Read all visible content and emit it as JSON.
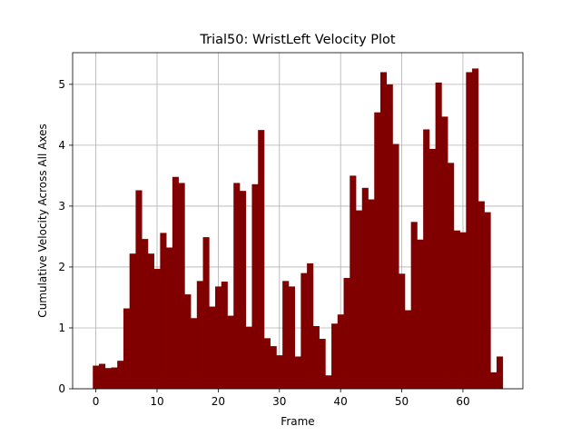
{
  "chart_data": {
    "type": "bar",
    "title": "Trial50: WristLeft Velocity Plot",
    "xlabel": "Frame",
    "ylabel": "Cumulative Velocity Across All Axes",
    "x": [
      0,
      1,
      2,
      3,
      4,
      5,
      6,
      7,
      8,
      9,
      10,
      11,
      12,
      13,
      14,
      15,
      16,
      17,
      18,
      19,
      20,
      21,
      22,
      23,
      24,
      25,
      26,
      27,
      28,
      29,
      30,
      31,
      32,
      33,
      34,
      35,
      36,
      37,
      38,
      39,
      40,
      41,
      42,
      43,
      44,
      45,
      46,
      47,
      48,
      49,
      50,
      51,
      52,
      53,
      54,
      55,
      56,
      57,
      58,
      59,
      60,
      61,
      62,
      63,
      64,
      65,
      66
    ],
    "values": [
      0.38,
      0.41,
      0.34,
      0.35,
      0.46,
      1.32,
      2.22,
      3.26,
      2.46,
      2.22,
      1.97,
      2.56,
      2.32,
      3.48,
      3.38,
      1.55,
      1.16,
      1.77,
      2.49,
      1.35,
      1.68,
      1.76,
      1.2,
      3.38,
      3.25,
      1.02,
      3.36,
      4.25,
      0.83,
      0.7,
      0.55,
      1.77,
      1.68,
      0.53,
      1.9,
      2.06,
      1.03,
      0.82,
      0.22,
      1.07,
      1.22,
      1.82,
      3.5,
      2.93,
      3.3,
      3.11,
      4.54,
      5.2,
      5.0,
      4.02,
      1.89,
      1.29,
      2.74,
      2.45,
      4.26,
      3.94,
      5.03,
      4.47,
      3.71,
      2.6,
      2.57,
      5.2,
      5.26,
      3.08,
      2.9,
      0.27,
      0.53
    ],
    "bar_color": "#800000",
    "xlim": [
      -3.8,
      69.8
    ],
    "ylim": [
      0,
      5.52
    ],
    "xticks": [
      "0",
      "10",
      "20",
      "30",
      "40",
      "50",
      "60"
    ],
    "yticks": [
      "0",
      "1",
      "2",
      "3",
      "4",
      "5"
    ],
    "grid": true
  }
}
